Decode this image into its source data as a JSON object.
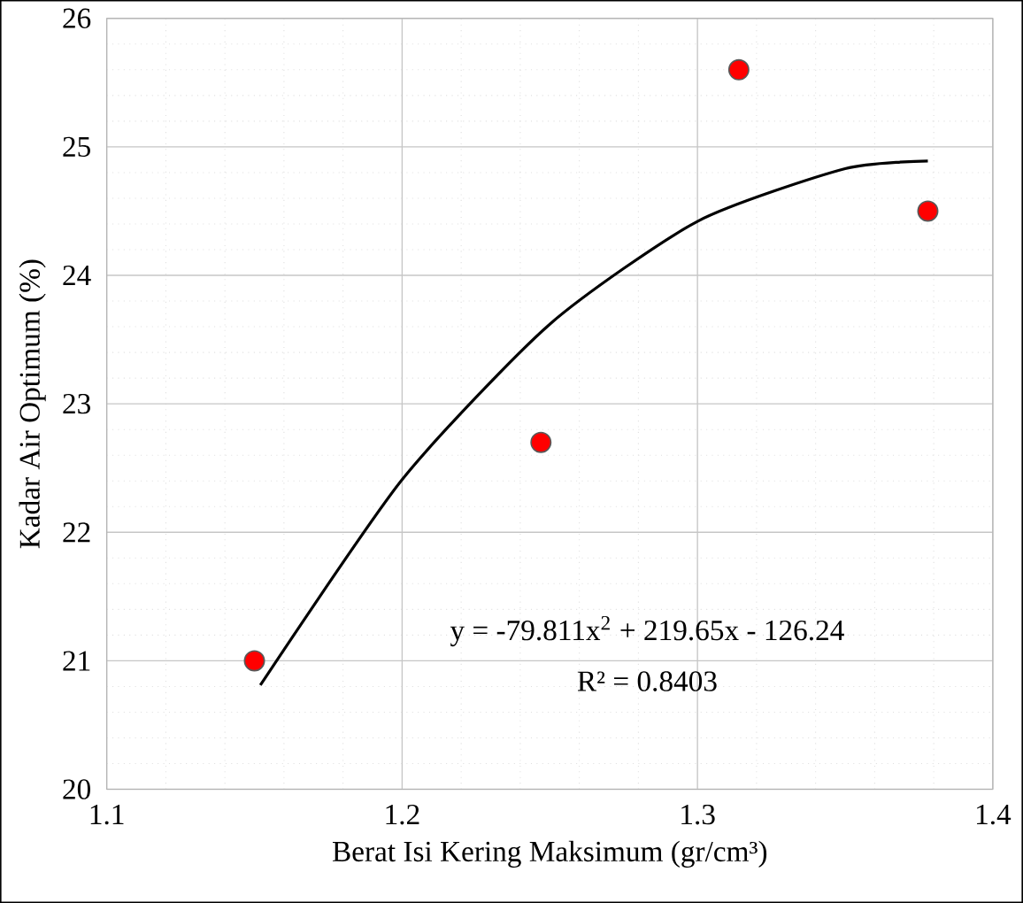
{
  "chart_data": {
    "type": "scatter",
    "xlabel": "Berat Isi Kering Maksimum (gr/cm³)",
    "ylabel": "Kadar Air Optimum (%)",
    "xlim": [
      1.1,
      1.4
    ],
    "xticks": [
      1.1,
      1.2,
      1.3,
      1.4
    ],
    "ylim": [
      20,
      26
    ],
    "yticks": [
      20,
      21,
      22,
      23,
      24,
      25,
      26
    ],
    "grid": true,
    "series": [
      {
        "color": "#ff0000",
        "marker": "circle",
        "x": [
          1.15,
          1.247,
          1.314,
          1.378
        ],
        "values": [
          21.0,
          22.7,
          25.6,
          24.5
        ]
      },
      {
        "type": "line",
        "color": "#000000",
        "marker": "none",
        "line_style": "solid",
        "x": [
          1.152,
          1.2,
          1.25,
          1.3,
          1.35,
          1.378
        ],
        "values": [
          20.81,
          22.41,
          23.62,
          24.42,
          24.83,
          24.89
        ]
      }
    ],
    "annotations": [
      "y = -79.811x$^{2}$ + 219.65x - 126.24",
      "R² = 0.8403"
    ]
  }
}
